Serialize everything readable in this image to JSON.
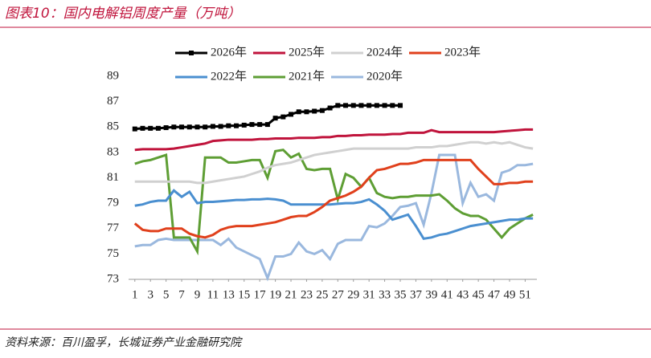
{
  "chart_data": {
    "type": "line",
    "title": "图表10：国内电解铝周度产量（万吨）",
    "source": "资料来源：百川盈孚，长城证券产业金融研究院",
    "x": [
      1,
      2,
      3,
      4,
      5,
      6,
      7,
      8,
      9,
      10,
      11,
      12,
      13,
      14,
      15,
      16,
      17,
      18,
      19,
      20,
      21,
      22,
      23,
      24,
      25,
      26,
      27,
      28,
      29,
      30,
      31,
      32,
      33,
      34,
      35,
      36,
      37,
      38,
      39,
      40,
      41,
      42,
      43,
      44,
      45,
      46,
      47,
      48,
      49,
      50,
      51,
      52
    ],
    "xlim": [
      0.2,
      52.5
    ],
    "xticks": [
      1,
      3,
      5,
      7,
      9,
      11,
      13,
      15,
      17,
      19,
      21,
      23,
      25,
      27,
      29,
      31,
      33,
      35,
      37,
      39,
      41,
      43,
      45,
      47,
      49,
      51
    ],
    "ylim": [
      73,
      89
    ],
    "yticks": [
      73,
      75,
      77,
      79,
      81,
      83,
      85,
      87,
      89
    ],
    "series": [
      {
        "name": "2026年",
        "color": "#000000",
        "marker": "square",
        "values": [
          84.85,
          84.9,
          84.9,
          84.9,
          84.95,
          85,
          85,
          85,
          85,
          85,
          85.05,
          85.05,
          85.1,
          85.1,
          85.15,
          85.2,
          85.2,
          85.2,
          85.7,
          85.8,
          86,
          86.2,
          86.2,
          86.25,
          86.3,
          86.5,
          86.7,
          86.7,
          86.7,
          86.7,
          86.7,
          86.7,
          86.7,
          86.7,
          86.7,
          null,
          null,
          null,
          null,
          null,
          null,
          null,
          null,
          null,
          null,
          null,
          null,
          null,
          null,
          null,
          null,
          null
        ]
      },
      {
        "name": "2025年",
        "color": "#c0143c",
        "values": [
          83.2,
          83.25,
          83.25,
          83.25,
          83.25,
          83.3,
          83.4,
          83.5,
          83.6,
          83.7,
          83.9,
          83.95,
          84,
          84,
          84,
          84,
          84.05,
          84.05,
          84.1,
          84.1,
          84.1,
          84.15,
          84.15,
          84.15,
          84.2,
          84.2,
          84.3,
          84.3,
          84.35,
          84.35,
          84.4,
          84.4,
          84.4,
          84.45,
          84.45,
          84.55,
          84.55,
          84.55,
          84.75,
          84.6,
          84.6,
          84.6,
          84.6,
          84.6,
          84.6,
          84.6,
          84.6,
          84.65,
          84.7,
          84.75,
          84.8,
          84.8
        ]
      },
      {
        "name": "2024年",
        "color": "#d0d0d0",
        "values": [
          80.7,
          80.7,
          80.7,
          80.7,
          80.7,
          80.7,
          80.7,
          80.7,
          80.6,
          80.6,
          80.7,
          80.8,
          80.9,
          81,
          81.1,
          81.3,
          81.5,
          81.8,
          82,
          82.1,
          82.2,
          82.4,
          82.6,
          82.8,
          82.9,
          83,
          83.1,
          83.2,
          83.3,
          83.3,
          83.3,
          83.3,
          83.3,
          83.3,
          83.3,
          83.3,
          83.4,
          83.4,
          83.4,
          83.5,
          83.5,
          83.6,
          83.7,
          83.8,
          83.8,
          83.7,
          83.8,
          83.7,
          83.8,
          83.6,
          83.4,
          83.3
        ]
      },
      {
        "name": "2023年",
        "color": "#e0401c",
        "values": [
          77.4,
          76.9,
          76.8,
          76.8,
          77,
          77,
          77,
          76.6,
          76.4,
          76.3,
          76.5,
          76.9,
          77.1,
          77.2,
          77.2,
          77.2,
          77.3,
          77.4,
          77.5,
          77.7,
          77.9,
          78,
          78,
          78.3,
          78.7,
          79.2,
          79.4,
          79.6,
          79.9,
          80.3,
          81,
          81.6,
          81.7,
          81.9,
          82.1,
          82.1,
          82.2,
          82.4,
          82.4,
          82.4,
          82.4,
          82.4,
          82.4,
          82.4,
          81.7,
          81.1,
          80.5,
          80.5,
          80.6,
          80.6,
          80.7,
          80.7
        ]
      },
      {
        "name": "2022年",
        "color": "#4a8fd0",
        "values": [
          78.8,
          78.9,
          79.1,
          79.2,
          79.2,
          80,
          79.5,
          79.9,
          79,
          79.1,
          79.1,
          79.15,
          79.2,
          79.25,
          79.25,
          79.3,
          79.3,
          79.35,
          79.3,
          79.2,
          78.9,
          78.9,
          78.9,
          78.9,
          78.9,
          78.9,
          78.95,
          79,
          79,
          79.1,
          79.3,
          78.9,
          78.4,
          77.7,
          77.9,
          78.1,
          77.2,
          76.2,
          76.3,
          76.5,
          76.6,
          76.8,
          77,
          77.2,
          77.3,
          77.4,
          77.5,
          77.6,
          77.7,
          77.7,
          77.8,
          77.8
        ]
      },
      {
        "name": "2021年",
        "color": "#5e9e34",
        "values": [
          82.1,
          82.3,
          82.4,
          82.6,
          82.8,
          76.3,
          76.3,
          76.3,
          75.2,
          82.6,
          82.6,
          82.6,
          82.2,
          82.2,
          82.3,
          82.4,
          82.4,
          81,
          83.1,
          83.2,
          82.6,
          82.9,
          81.7,
          81.6,
          81.7,
          81.7,
          79.3,
          81.3,
          81,
          80.3,
          81,
          79.8,
          79.5,
          79.4,
          79.5,
          79.5,
          79.6,
          79.6,
          79.6,
          79.7,
          79.2,
          78.6,
          78.2,
          78,
          78,
          77.7,
          77,
          76.3,
          77,
          77.4,
          77.8,
          78.1
        ]
      },
      {
        "name": "2020年",
        "color": "#9ab8de",
        "values": [
          75.6,
          75.7,
          75.7,
          76.1,
          76.2,
          76.1,
          76.1,
          76.1,
          76.1,
          76.1,
          76.1,
          75.7,
          76.2,
          75.5,
          75.2,
          74.9,
          74.6,
          73.1,
          74.8,
          74.8,
          75,
          75.9,
          75.2,
          75,
          75.3,
          74.6,
          75.8,
          76.1,
          76.1,
          76.1,
          77.2,
          77.1,
          77.4,
          78,
          78.7,
          78.8,
          79,
          77.3,
          79.8,
          82.8,
          82.8,
          82.8,
          79,
          80.6,
          79.5,
          79.7,
          79.2,
          81.4,
          81.6,
          82,
          82,
          82.1
        ]
      }
    ]
  }
}
